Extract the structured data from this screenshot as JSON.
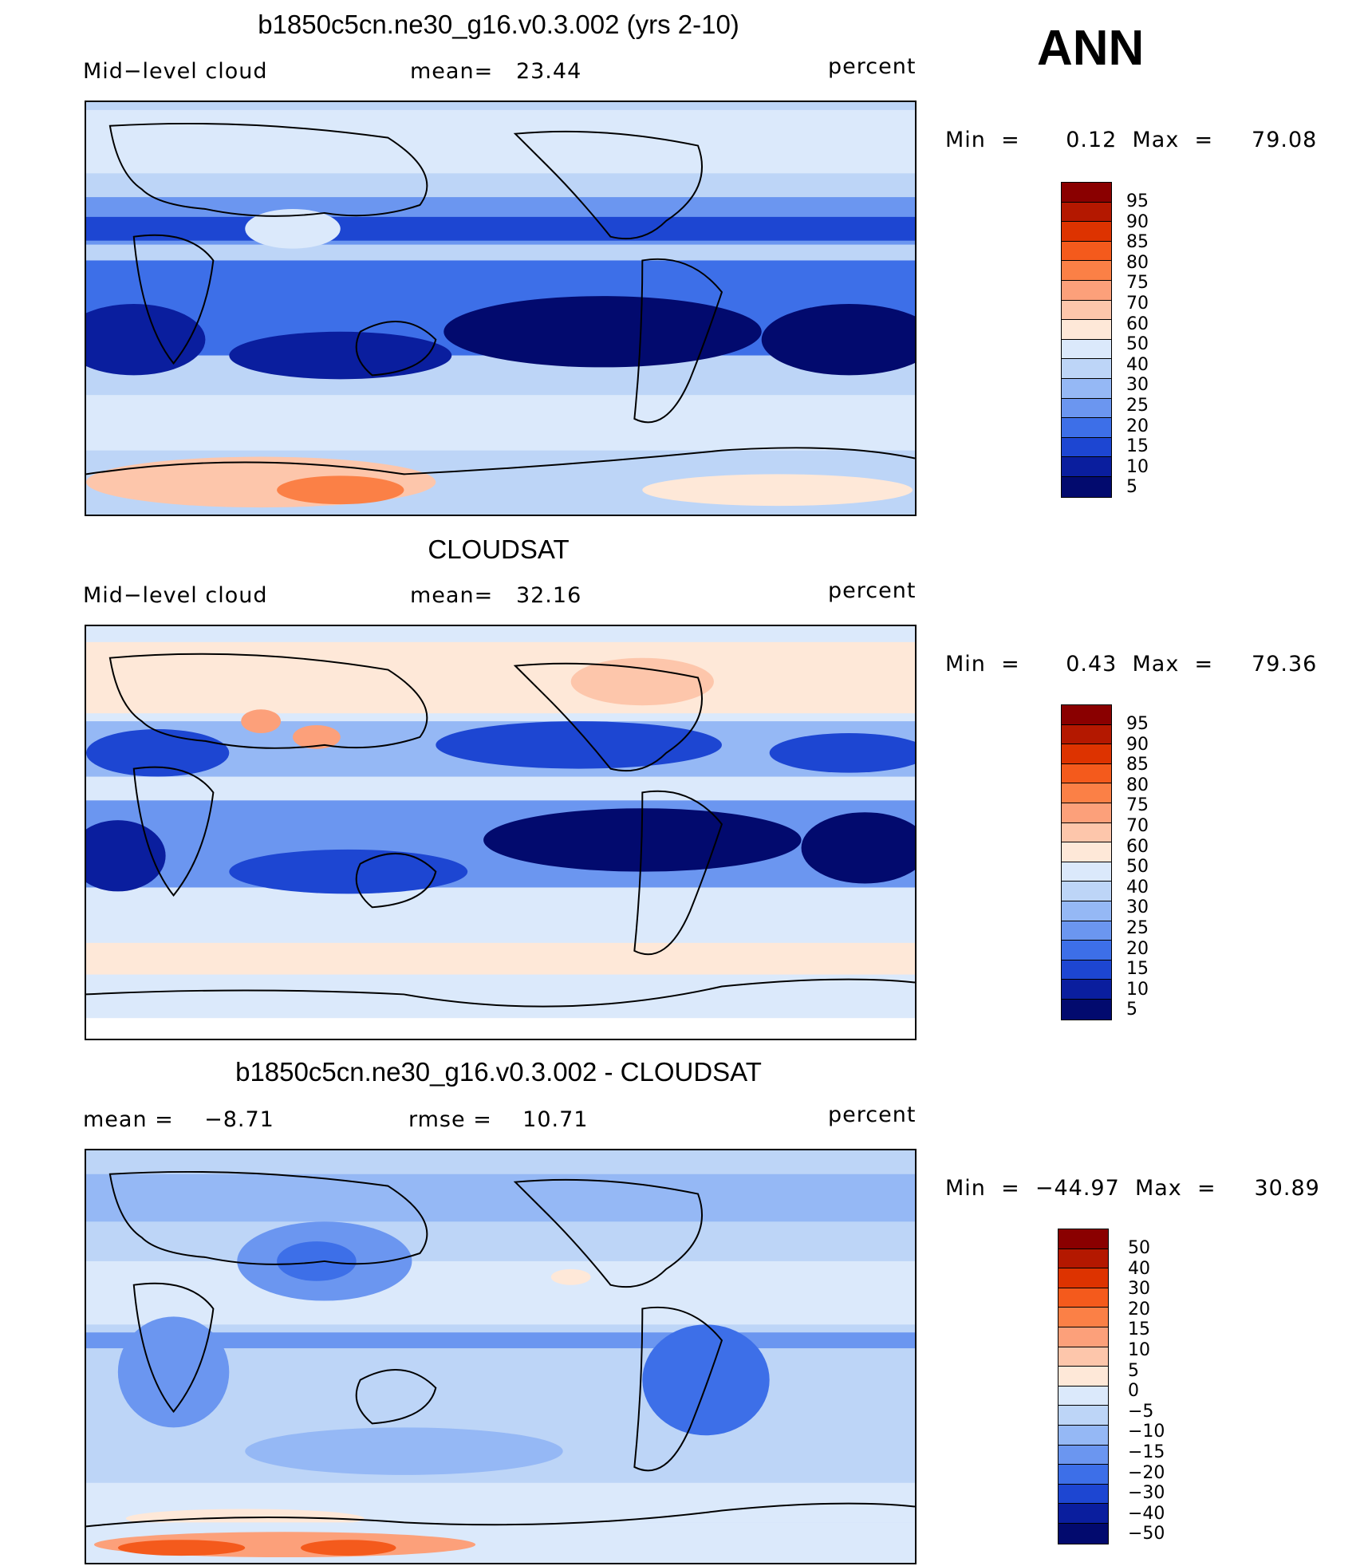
{
  "season": "ANN",
  "panels": [
    {
      "title": "b1850c5cn.ne30_g16.v0.3.002 (yrs 2-10)",
      "left_label": "Mid−level cloud",
      "stat_label": "mean=",
      "stat_value": "23.44",
      "units": "percent",
      "min_label": "Min",
      "min_value": "0.12",
      "max_label": "Max",
      "max_value": "79.08",
      "legend_labels": [
        "95",
        "90",
        "85",
        "80",
        "75",
        "70",
        "60",
        "50",
        "40",
        "30",
        "25",
        "20",
        "15",
        "10",
        "5"
      ],
      "legend_colors": [
        "#8a0000",
        "#b41800",
        "#dd3300",
        "#f45a1c",
        "#fb8046",
        "#fca07a",
        "#fdc6ab",
        "#fee8d8",
        "#dbe9fb",
        "#bdd5f7",
        "#95b8f5",
        "#6b96f0",
        "#3d6fe8",
        "#1d46d2",
        "#0a1e9e",
        "#020a6e"
      ]
    },
    {
      "title": "CLOUDSAT",
      "left_label": "Mid−level cloud",
      "stat_label": "mean=",
      "stat_value": "32.16",
      "units": "percent",
      "min_label": "Min",
      "min_value": "0.43",
      "max_label": "Max",
      "max_value": "79.36",
      "legend_labels": [
        "95",
        "90",
        "85",
        "80",
        "75",
        "70",
        "60",
        "50",
        "40",
        "30",
        "25",
        "20",
        "15",
        "10",
        "5"
      ],
      "legend_colors": [
        "#8a0000",
        "#b41800",
        "#dd3300",
        "#f45a1c",
        "#fb8046",
        "#fca07a",
        "#fdc6ab",
        "#fee8d8",
        "#dbe9fb",
        "#bdd5f7",
        "#95b8f5",
        "#6b96f0",
        "#3d6fe8",
        "#1d46d2",
        "#0a1e9e",
        "#020a6e"
      ]
    },
    {
      "title": "b1850c5cn.ne30_g16.v0.3.002 - CLOUDSAT",
      "left_label_key": "mean =",
      "left_label_value": "−8.71",
      "stat_label": "rmse =",
      "stat_value": "10.71",
      "units": "percent",
      "min_label": "Min",
      "min_value": "−44.97",
      "max_label": "Max",
      "max_value": "30.89",
      "legend_labels": [
        "50",
        "40",
        "30",
        "20",
        "15",
        "10",
        "5",
        "0",
        "−5",
        "−10",
        "−15",
        "−20",
        "−30",
        "−40",
        "−50"
      ],
      "legend_colors": [
        "#8a0000",
        "#b41800",
        "#dd3300",
        "#f45a1c",
        "#fb8046",
        "#fca07a",
        "#fdc6ab",
        "#fee8d8",
        "#dbe9fb",
        "#bdd5f7",
        "#95b8f5",
        "#6b96f0",
        "#3d6fe8",
        "#1d46d2",
        "#0a1e9e",
        "#020a6e"
      ]
    }
  ]
}
